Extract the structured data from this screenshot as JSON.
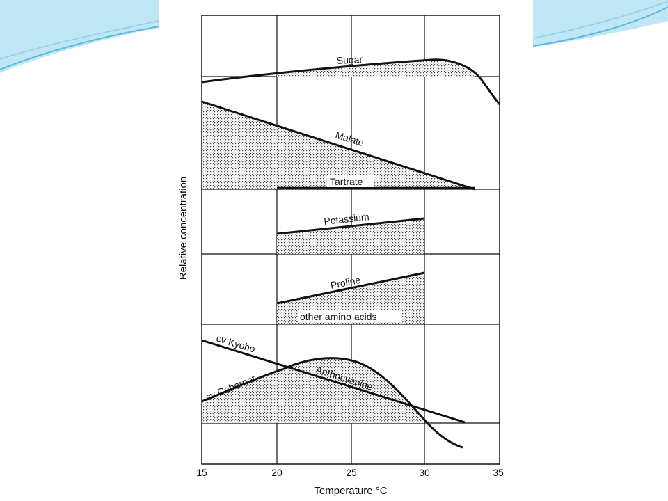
{
  "slide": {
    "accent_color": "#5bb8e0",
    "accent_light": "#bfe6f5"
  },
  "chart_data": {
    "type": "area",
    "xlabel": "Temperature °C",
    "ylabel": "Relative concentration",
    "xlim": [
      15,
      35
    ],
    "x_ticks": [
      "15",
      "20",
      "25",
      "30",
      "35"
    ],
    "grid": true,
    "fill_pattern": "stippled",
    "panels": [
      {
        "series": [
          {
            "name": "Sugar",
            "x": [
              15,
              20,
              25,
              30,
              31,
              32.5,
              35
            ],
            "y": [
              0.2,
              0.38,
              0.55,
              0.75,
              0.78,
              0.6,
              -1.0
            ]
          }
        ],
        "baseline": 0.0,
        "shaded": "Sugar above baseline"
      },
      {
        "series": [
          {
            "name": "Malate",
            "x": [
              15,
              20,
              25,
              30,
              33.5
            ],
            "y": [
              1.0,
              0.73,
              0.46,
              0.19,
              0.0
            ]
          },
          {
            "name": "Tartrate",
            "x": [
              20,
              30
            ],
            "y": [
              0.0,
              0.0
            ]
          }
        ],
        "shaded": "Malate above Tartrate"
      },
      {
        "series": [
          {
            "name": "Potassium",
            "x": [
              20,
              30
            ],
            "y": [
              0.35,
              0.72
            ]
          }
        ],
        "shaded": "Potassium above baseline"
      },
      {
        "series": [
          {
            "name": "Proline",
            "x": [
              20,
              30
            ],
            "y": [
              0.36,
              0.85
            ]
          },
          {
            "name": "other amino acids",
            "x": [
              20,
              30
            ],
            "y": [
              0.0,
              0.0
            ]
          }
        ],
        "shaded": "Proline above other amino acids"
      },
      {
        "series": [
          {
            "name": "cv Kyoho",
            "x": [
              15,
              20,
              25,
              30,
              33
            ],
            "y": [
              1.0,
              0.78,
              0.56,
              0.35,
              0.22
            ]
          },
          {
            "name": "cv Cabernet",
            "x": [
              15,
              20,
              22,
              23,
              25,
              27,
              30,
              32.5
            ],
            "y": [
              0.28,
              0.6,
              0.75,
              0.78,
              0.74,
              0.6,
              0.2,
              -0.15
            ]
          },
          {
            "name": "Anthocyanine",
            "x": [
              15,
              33
            ],
            "y": [
              0.0,
              0.0
            ]
          }
        ],
        "shaded": "Anthocyanine between curves"
      }
    ]
  }
}
